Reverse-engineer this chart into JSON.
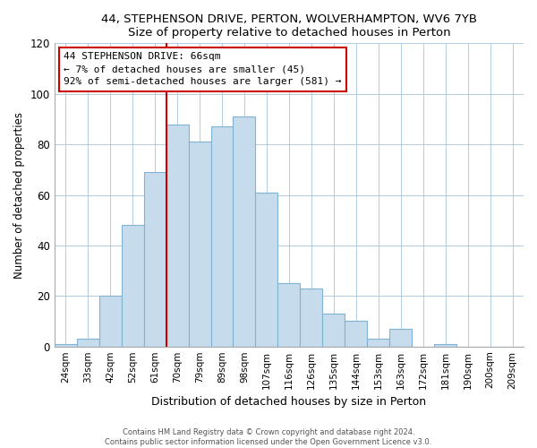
{
  "title1": "44, STEPHENSON DRIVE, PERTON, WOLVERHAMPTON, WV6 7YB",
  "title2": "Size of property relative to detached houses in Perton",
  "xlabel": "Distribution of detached houses by size in Perton",
  "ylabel": "Number of detached properties",
  "bar_labels": [
    "24sqm",
    "33sqm",
    "42sqm",
    "52sqm",
    "61sqm",
    "70sqm",
    "79sqm",
    "89sqm",
    "98sqm",
    "107sqm",
    "116sqm",
    "126sqm",
    "135sqm",
    "144sqm",
    "153sqm",
    "163sqm",
    "172sqm",
    "181sqm",
    "190sqm",
    "200sqm",
    "209sqm"
  ],
  "bar_values": [
    1,
    3,
    20,
    48,
    69,
    88,
    81,
    87,
    91,
    61,
    25,
    23,
    13,
    10,
    3,
    7,
    0,
    1,
    0,
    0,
    0
  ],
  "bar_color": "#c6dcec",
  "bar_edgecolor": "#7fb3d3",
  "vline_x": 4.5,
  "vline_color": "#cc0000",
  "annotation_lines": [
    "44 STEPHENSON DRIVE: 66sqm",
    "← 7% of detached houses are smaller (45)",
    "92% of semi-detached houses are larger (581) →"
  ],
  "box_edgecolor": "#cc0000",
  "box_facecolor": "#ffffff",
  "ylim": [
    0,
    120
  ],
  "yticks": [
    0,
    20,
    40,
    60,
    80,
    100,
    120
  ],
  "bg_color": "#f0f4f8",
  "footer1": "Contains HM Land Registry data © Crown copyright and database right 2024.",
  "footer2": "Contains public sector information licensed under the Open Government Licence v3.0."
}
